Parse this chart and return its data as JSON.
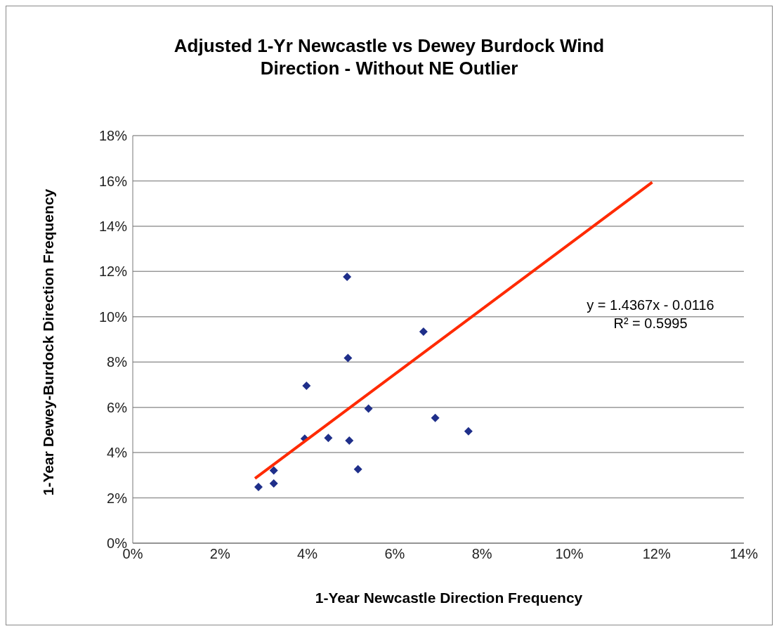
{
  "chart_data": {
    "type": "scatter",
    "title": "Adjusted 1-Yr Newcastle vs Dewey Burdock Wind Direction - Without NE Outlier",
    "xlabel": "1-Year Newcastle Direction Frequency",
    "ylabel": "1-Year Dewey-Burdock Direction Frequency",
    "series": [
      {
        "color": "#1f2f8a",
        "x": [
          0.0288,
          0.0323,
          0.0323,
          0.0394,
          0.0398,
          0.0448,
          0.0491,
          0.0493,
          0.0496,
          0.0516,
          0.054,
          0.0666,
          0.0693,
          0.0769
        ],
        "values": [
          0.0248,
          0.0264,
          0.0321,
          0.0462,
          0.0695,
          0.0465,
          0.1176,
          0.0818,
          0.0453,
          0.0327,
          0.0594,
          0.0934,
          0.0553,
          0.0494
        ]
      },
      {
        "type": "line",
        "marker": "none",
        "color": "#ff2a00",
        "x": [
          0.028,
          0.119
        ],
        "values": [
          0.0286,
          0.1594
        ]
      }
    ],
    "annotations": [
      "y = 1.4367x - 0.0116",
      "R² = 0.5995"
    ],
    "xlim": [
      0,
      0.14
    ],
    "xticks": [
      {
        "value": 0,
        "label": "0%"
      },
      {
        "value": 0.02,
        "label": "2%"
      },
      {
        "value": 0.04,
        "label": "4%"
      },
      {
        "value": 0.06,
        "label": "6%"
      },
      {
        "value": 0.08,
        "label": "8%"
      },
      {
        "value": 0.1,
        "label": "10%"
      },
      {
        "value": 0.12,
        "label": "12%"
      },
      {
        "value": 0.14,
        "label": "14%"
      }
    ],
    "ylim": [
      0,
      0.18
    ],
    "yticks": [
      {
        "value": 0,
        "label": "0%"
      },
      {
        "value": 0.02,
        "label": "2%"
      },
      {
        "value": 0.04,
        "label": "4%"
      },
      {
        "value": 0.06,
        "label": "6%"
      },
      {
        "value": 0.08,
        "label": "8%"
      },
      {
        "value": 0.1,
        "label": "10%"
      },
      {
        "value": 0.12,
        "label": "12%"
      },
      {
        "value": 0.14,
        "label": "14%"
      },
      {
        "value": 0.16,
        "label": "16%"
      },
      {
        "value": 0.18,
        "label": "18%"
      }
    ],
    "grid": "y",
    "marker": "diamond",
    "legend": false
  }
}
